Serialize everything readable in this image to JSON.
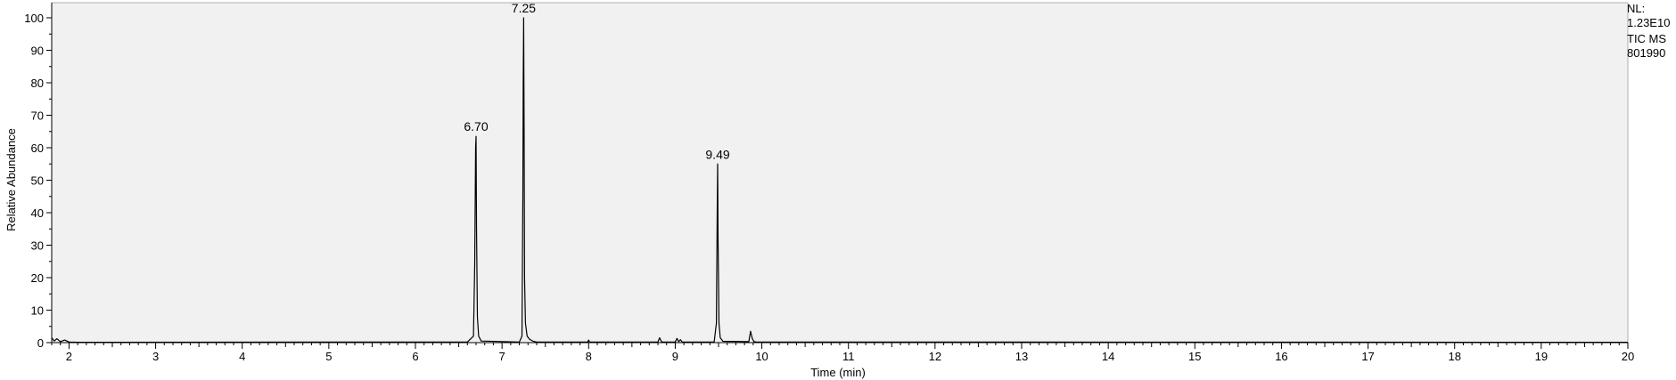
{
  "chart_data": {
    "type": "line",
    "xlabel": "Time (min)",
    "ylabel": "Relative Abundance",
    "xlim": [
      1.8,
      20
    ],
    "ylim": [
      0,
      100
    ],
    "x_ticks": [
      "2",
      "3",
      "4",
      "5",
      "6",
      "7",
      "8",
      "9",
      "10",
      "11",
      "12",
      "13",
      "14",
      "15",
      "16",
      "17",
      "18",
      "19",
      "20"
    ],
    "y_ticks": [
      "0",
      "10",
      "20",
      "30",
      "40",
      "50",
      "60",
      "70",
      "80",
      "90",
      "100"
    ],
    "grid": false,
    "background": "#f1f1f1",
    "line_color": "#000000",
    "series": [
      {
        "x": [
          1.8,
          1.83,
          1.86,
          1.9,
          1.95,
          2.0,
          2.1,
          6.6,
          6.67,
          6.685,
          6.695,
          6.7,
          6.705,
          6.715,
          6.73,
          6.76,
          7.2,
          7.23,
          7.24,
          7.245,
          7.25,
          7.255,
          7.26,
          7.27,
          7.29,
          7.32,
          7.36,
          7.4,
          7.99,
          8.0,
          8.01,
          8.8,
          8.82,
          8.84,
          8.86,
          9.0,
          9.02,
          9.04,
          9.06,
          9.08,
          9.1,
          9.45,
          9.475,
          9.485,
          9.49,
          9.495,
          9.505,
          9.52,
          9.55,
          9.85,
          9.87,
          9.89,
          9.91,
          9.94,
          20.0
        ],
        "y": [
          1.5,
          0.5,
          1.2,
          0.3,
          0.8,
          0.2,
          0.1,
          0.2,
          2.0,
          24.0,
          60.0,
          63.5,
          36.0,
          8.0,
          2.0,
          0.5,
          0.2,
          2.0,
          45.0,
          80.0,
          100.0,
          66.0,
          20.0,
          6.0,
          2.0,
          1.0,
          0.4,
          0.2,
          0.2,
          0.8,
          0.2,
          0.2,
          1.5,
          0.3,
          0.2,
          0.2,
          1.3,
          0.3,
          0.9,
          0.2,
          0.2,
          0.2,
          6.0,
          40.0,
          55.0,
          31.0,
          6.0,
          1.5,
          0.4,
          0.3,
          3.5,
          1.2,
          0.3,
          0.2,
          0.1
        ]
      }
    ],
    "peak_labels": [
      {
        "x": 6.7,
        "y": 63.5,
        "text": "6.70"
      },
      {
        "x": 7.25,
        "y": 100,
        "text": "7.25"
      },
      {
        "x": 9.49,
        "y": 55,
        "text": "9.49"
      }
    ]
  },
  "info": {
    "nl_label": "NL:",
    "nl_value": "1.23E10",
    "trace": "TIC  MS",
    "file": "801990"
  }
}
